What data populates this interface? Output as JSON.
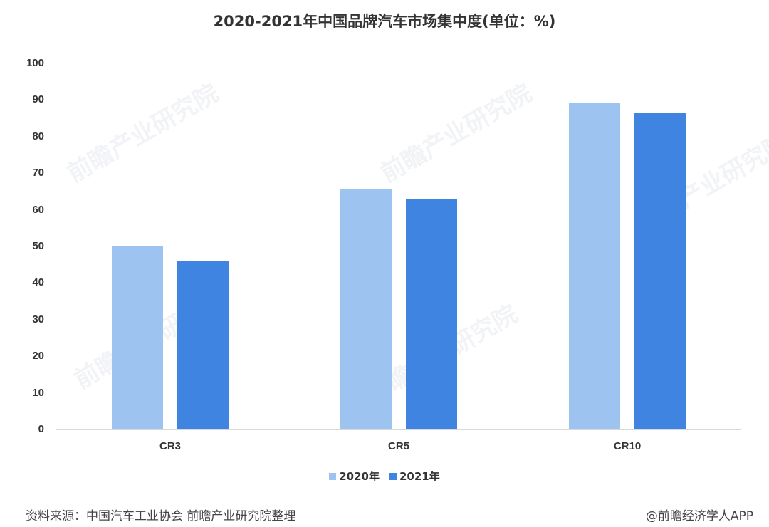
{
  "title": "2020-2021年中国品牌汽车市场集中度(单位：%)",
  "chart_data": {
    "type": "bar",
    "title": "2020-2021年中国品牌汽车市场集中度(单位：%)",
    "xlabel": "",
    "ylabel": "",
    "ylim": [
      0,
      100
    ],
    "yticks": [
      0,
      10,
      20,
      30,
      40,
      50,
      60,
      70,
      80,
      90,
      100
    ],
    "categories": [
      "CR3",
      "CR5",
      "CR10"
    ],
    "series": [
      {
        "name": "2020年",
        "color": "#9dc3f0",
        "values": [
          50.1,
          65.8,
          89.3
        ]
      },
      {
        "name": "2021年",
        "color": "#3f84e0",
        "values": [
          46.0,
          63.0,
          86.4
        ]
      }
    ],
    "grid": false,
    "legend_position": "bottom"
  },
  "yaxis": {
    "ticks": [
      "100",
      "90",
      "80",
      "70",
      "60",
      "50",
      "40",
      "30",
      "20",
      "10",
      "0"
    ]
  },
  "xaxis": {
    "labels": [
      "CR3",
      "CR5",
      "CR10"
    ]
  },
  "legend": {
    "items": [
      {
        "label": "2020年",
        "color": "#9dc3f0"
      },
      {
        "label": "2021年",
        "color": "#3f84e0"
      }
    ]
  },
  "footer": {
    "source": "资料来源：中国汽车工业协会 前瞻产业研究院整理",
    "credit": "@前瞻经济学人APP"
  },
  "watermark": "前瞻产业研究院"
}
